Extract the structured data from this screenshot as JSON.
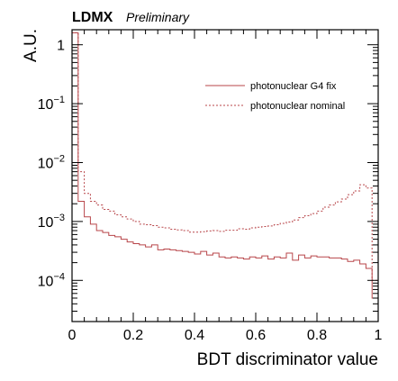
{
  "chart_data": {
    "type": "line",
    "experiment": "LDMX",
    "status": "Preliminary",
    "xlabel": "BDT discriminator value",
    "ylabel": "A.U.",
    "xlim": [
      0,
      1
    ],
    "ylim": [
      2e-05,
      1.8
    ],
    "yscale": "log",
    "grid": false,
    "legend_position": "top-right",
    "x_ticks": [
      {
        "value": 0,
        "label": "0"
      },
      {
        "value": 0.2,
        "label": "0.2"
      },
      {
        "value": 0.4,
        "label": "0.4"
      },
      {
        "value": 0.6,
        "label": "0.6"
      },
      {
        "value": 0.8,
        "label": "0.8"
      },
      {
        "value": 1,
        "label": "1"
      }
    ],
    "y_ticks": [
      {
        "value": 1,
        "base": "1",
        "exp": ""
      },
      {
        "value": 0.1,
        "base": "10",
        "exp": "−1"
      },
      {
        "value": 0.01,
        "base": "10",
        "exp": "−2"
      },
      {
        "value": 0.001,
        "base": "10",
        "exp": "−3"
      },
      {
        "value": 0.0001,
        "base": "10",
        "exp": "−4"
      }
    ],
    "bin_edges": [
      0,
      0.02,
      0.04,
      0.06,
      0.08,
      0.1,
      0.12,
      0.14,
      0.16,
      0.18,
      0.2,
      0.22,
      0.24,
      0.26,
      0.28,
      0.3,
      0.32,
      0.34,
      0.36,
      0.38,
      0.4,
      0.42,
      0.44,
      0.46,
      0.48,
      0.5,
      0.52,
      0.54,
      0.56,
      0.58,
      0.6,
      0.62,
      0.64,
      0.66,
      0.68,
      0.7,
      0.72,
      0.74,
      0.76,
      0.78,
      0.8,
      0.82,
      0.84,
      0.86,
      0.88,
      0.9,
      0.92,
      0.94,
      0.96,
      0.98,
      1.0
    ],
    "series": [
      {
        "name": "photonuclear G4 fix",
        "style": "solid",
        "color": "#b8464a",
        "values": [
          1.6,
          0.0022,
          0.0012,
          0.0009,
          0.0007,
          0.00065,
          0.00058,
          0.00055,
          0.0005,
          0.00045,
          0.00042,
          0.0004,
          0.00037,
          0.0004,
          0.00033,
          0.00034,
          0.00033,
          0.00032,
          0.00031,
          0.0003,
          0.00028,
          0.00031,
          0.00027,
          0.00029,
          0.00025,
          0.00024,
          0.00025,
          0.00024,
          0.00023,
          0.00025,
          0.00024,
          0.00026,
          0.00023,
          0.00025,
          0.00024,
          0.00029,
          0.00022,
          0.00027,
          0.00024,
          0.00026,
          0.00025,
          0.00025,
          0.00024,
          0.00024,
          0.00023,
          0.00021,
          0.00022,
          0.00019,
          0.00016,
          5e-05
        ]
      },
      {
        "name": "photonuclear nominal",
        "style": "dashed",
        "color": "#b8464a",
        "values": [
          1.6,
          0.007,
          0.003,
          0.0022,
          0.0019,
          0.0016,
          0.0015,
          0.0013,
          0.0012,
          0.0011,
          0.001,
          0.0009,
          0.00088,
          0.00085,
          0.0008,
          0.00078,
          0.00074,
          0.00072,
          0.0007,
          0.00066,
          0.00066,
          0.00067,
          0.00069,
          0.0007,
          0.00068,
          0.00071,
          0.00071,
          0.00075,
          0.00074,
          0.00078,
          0.0008,
          0.00082,
          0.00084,
          0.00088,
          0.00093,
          0.00098,
          0.00106,
          0.00116,
          0.00125,
          0.00136,
          0.0015,
          0.00175,
          0.0019,
          0.00215,
          0.0024,
          0.00285,
          0.0033,
          0.0042,
          0.0037,
          0.0001
        ]
      }
    ]
  }
}
